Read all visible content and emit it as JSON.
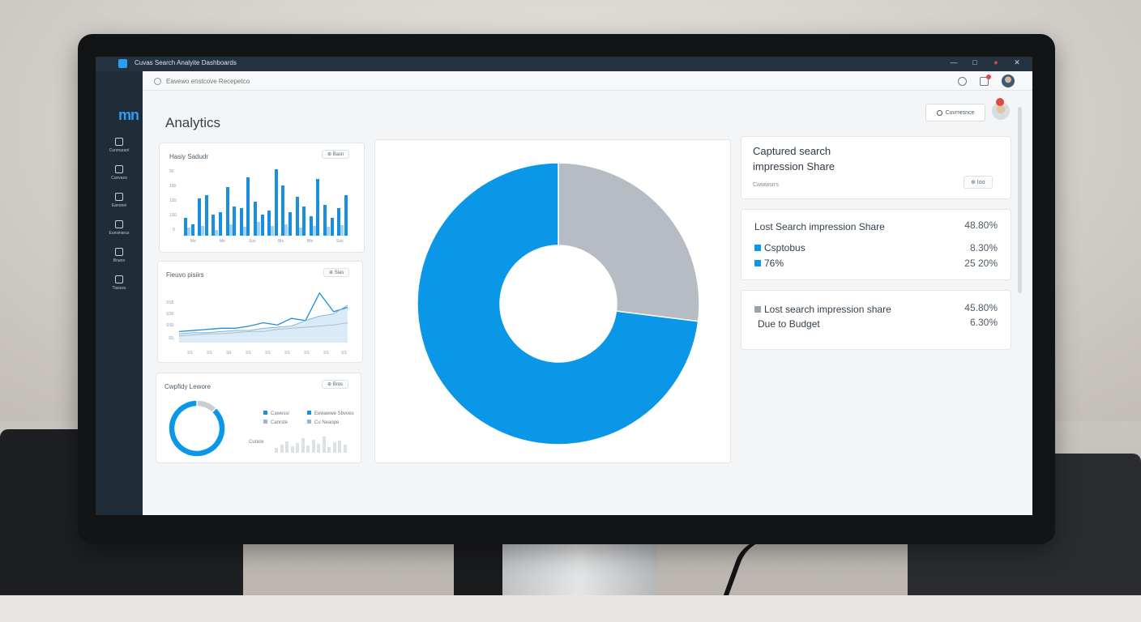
{
  "window": {
    "title": "Cuvas Search Analyite Dashboards",
    "controls": [
      "—",
      "□",
      "●",
      "✕"
    ]
  },
  "sidebar": {
    "logo_text": "mn",
    "items": [
      {
        "label": "Cunmaranl",
        "icon": "home-icon"
      },
      {
        "label": "Cunvans",
        "icon": "briefcase-icon"
      },
      {
        "label": "Eanonei",
        "icon": "gauge-icon"
      },
      {
        "label": "Eunsinarus",
        "icon": "calendar-icon"
      },
      {
        "label": "Bnano",
        "icon": "chart-icon"
      },
      {
        "label": "Tiasces",
        "icon": "image-icon"
      }
    ]
  },
  "search": {
    "placeholder": "Eavewo enstcove Recepetco"
  },
  "header": {
    "title": "Analytics",
    "button_label": "Cuvrresnce"
  },
  "cards": {
    "bar_card": {
      "title": "Hasiy Sadudr",
      "button": "⊕ Basn",
      "yticks": [
        "50",
        "100",
        "1S5",
        "1S0",
        "0"
      ],
      "xticks": [
        "Mo",
        "Mo",
        "Sus",
        "Blo",
        "Blo",
        "Sos"
      ]
    },
    "line_card": {
      "title": "Fieuvo pisiirs",
      "button": "⊕ Sias",
      "yticks": [
        "SS5",
        "SS0",
        "SS0",
        "S5"
      ],
      "xticks": [
        "SS",
        "SS",
        "Sâ",
        "SS",
        "SS",
        "SS",
        "SS",
        "SS",
        "SS"
      ]
    },
    "donut_card": {
      "title": "Cwpfidy Lewore",
      "button": "⊕ Bros",
      "legend": [
        "Cawessi",
        "Canrste",
        "Eewawwe Sbvoes",
        "Cu Neaope"
      ],
      "footer_label": "Cuniov"
    }
  },
  "metrics": {
    "captured": {
      "title_line1": "Captured search",
      "title_line2": "impression Share",
      "sub": "Cwwwsrrs",
      "button": "⊕ Ioo"
    },
    "lost": {
      "title": "Lost Search impression Share",
      "value": "48.80%",
      "row1_label": "Csptobus",
      "row1_value": "8.30%",
      "row2_label": "76%",
      "row2_value": "25 20%"
    },
    "budget": {
      "title_line1": "Lost search impression share",
      "title_line2": "Due to Budget",
      "value1": "45.80%",
      "value2": "6.30%"
    }
  },
  "chart_data": [
    {
      "type": "bar",
      "title": "Hasiy Sadudr",
      "series": [
        {
          "values": [
            18,
            12,
            38,
            42,
            22,
            24,
            50,
            30,
            28,
            60,
            35,
            22,
            26,
            68,
            52,
            24,
            40,
            30,
            20,
            58,
            32,
            18,
            28,
            42
          ]
        },
        {
          "values": [
            8,
            10,
            6,
            12,
            9,
            14,
            10,
            12,
            8,
            10,
            9,
            11
          ]
        }
      ],
      "colors": [
        "#1a8fe0",
        "#9fd2f3"
      ]
    },
    {
      "type": "line",
      "title": "Fieuvo pisiirs",
      "series": [
        {
          "values": [
            10,
            11,
            12,
            13,
            13,
            15,
            18,
            16,
            22,
            20,
            45,
            28,
            32
          ]
        },
        {
          "values": [
            8,
            9,
            9,
            10,
            11,
            11,
            13,
            14,
            15,
            20,
            24,
            26,
            34
          ]
        },
        {
          "values": [
            6,
            7,
            8,
            8,
            9,
            10,
            10,
            12,
            13,
            14,
            15,
            16,
            18
          ]
        }
      ],
      "colors": [
        "#1a8fe0",
        "#7fb9e3",
        "#b5bdc5"
      ]
    },
    {
      "type": "pie",
      "slices": [
        {
          "value": 73,
          "color": "#0b97e8"
        },
        {
          "value": 27,
          "color": "#b5bcc3"
        }
      ]
    },
    {
      "type": "pie",
      "slices": [
        {
          "value": 88,
          "color": "#0b97e8"
        },
        {
          "value": 12,
          "color": "#c9ced3"
        }
      ]
    }
  ]
}
